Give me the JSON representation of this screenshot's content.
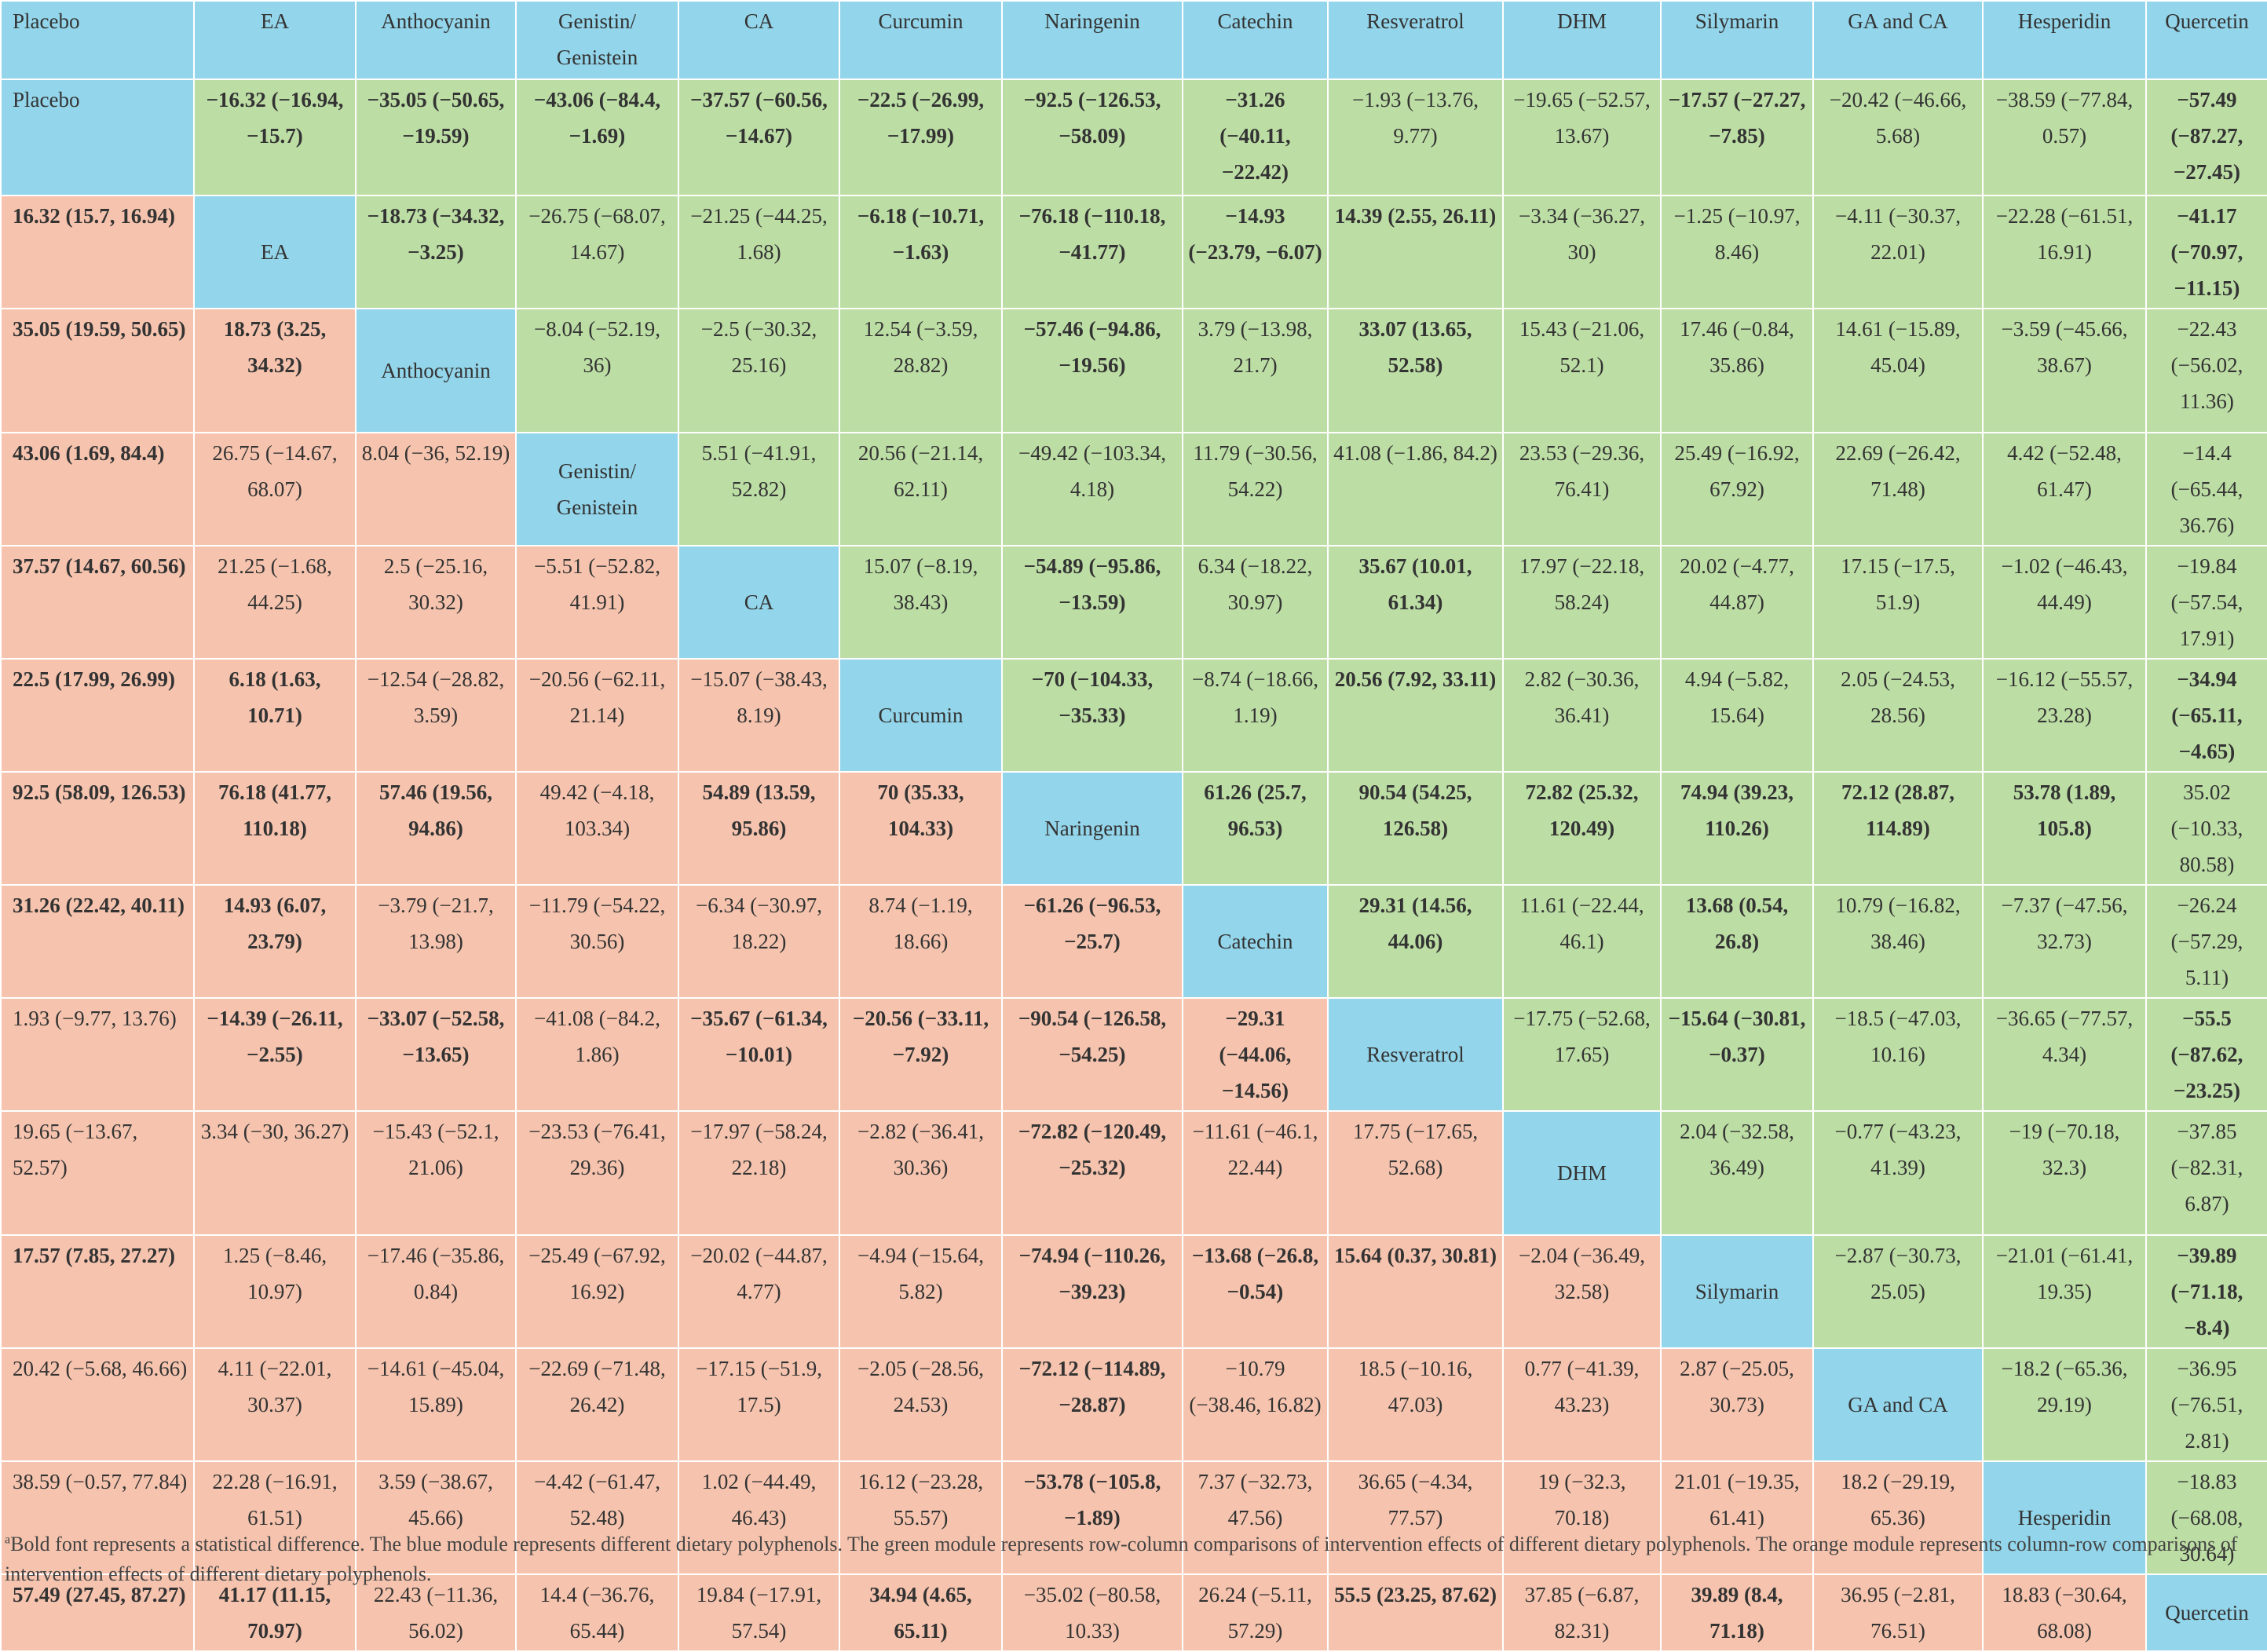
{
  "colors": {
    "blue": "#93d5ea",
    "green": "#bcdda4",
    "orange": "#f6c4ae"
  },
  "table": {
    "headers": [
      "Placebo",
      "EA",
      "Anthocyanin",
      "Genistin/ Genistein",
      "CA",
      "Curcumin",
      "Naringenin",
      "Catechin",
      "Resveratrol",
      "DHM",
      "Silymarin",
      "GA and CA",
      "Hesperidin",
      "Quercetin"
    ],
    "rows": [
      [
        "Placebo",
        "**−16.32 (−16.94, −15.7)",
        "**−35.05 (−50.65, −19.59)",
        "**−43.06 (−84.4, −1.69)",
        "**−37.57 (−60.56, −14.67)",
        "**−22.5 (−26.99, −17.99)",
        "**−92.5 (−126.53, −58.09)",
        "**−31.26 (−40.11, −22.42)",
        "−1.93 (−13.76, 9.77)",
        "−19.65 (−52.57, 13.67)",
        "**−17.57 (−27.27, −7.85)",
        "−20.42 (−46.66, 5.68)",
        "−38.59 (−77.84, 0.57)",
        "**−57.49 (−87.27, −27.45)"
      ],
      [
        "**16.32 (15.7, 16.94)",
        "EA",
        "**−18.73 (−34.32, −3.25)",
        "−26.75 (−68.07, 14.67)",
        "−21.25 (−44.25, 1.68)",
        "**−6.18 (−10.71, −1.63)",
        "**−76.18 (−110.18, −41.77)",
        "**−14.93 (−23.79, −6.07)",
        "**14.39 (2.55, 26.11)",
        "−3.34 (−36.27, 30)",
        "−1.25 (−10.97, 8.46)",
        "−4.11 (−30.37, 22.01)",
        "−22.28 (−61.51, 16.91)",
        "**−41.17 (−70.97, −11.15)"
      ],
      [
        "**35.05 (19.59, 50.65)",
        "**18.73 (3.25, 34.32)",
        "Anthocyanin",
        "−8.04 (−52.19, 36)",
        "−2.5 (−30.32, 25.16)",
        "12.54 (−3.59, 28.82)",
        "**−57.46 (−94.86, −19.56)",
        "3.79 (−13.98, 21.7)",
        "**33.07 (13.65, 52.58)",
        "15.43 (−21.06, 52.1)",
        "17.46 (−0.84, 35.86)",
        "14.61 (−15.89, 45.04)",
        "−3.59 (−45.66, 38.67)",
        "−22.43 (−56.02, 11.36)"
      ],
      [
        "**43.06 (1.69, 84.4)",
        "26.75 (−14.67, 68.07)",
        "8.04 (−36, 52.19)",
        "Genistin/ Genistein",
        "5.51 (−41.91, 52.82)",
        "20.56 (−21.14, 62.11)",
        "−49.42 (−103.34, 4.18)",
        "11.79 (−30.56, 54.22)",
        "41.08 (−1.86, 84.2)",
        "23.53 (−29.36, 76.41)",
        "25.49 (−16.92, 67.92)",
        "22.69 (−26.42, 71.48)",
        "4.42 (−52.48, 61.47)",
        "−14.4 (−65.44, 36.76)"
      ],
      [
        "**37.57 (14.67, 60.56)",
        "21.25 (−1.68, 44.25)",
        "2.5 (−25.16, 30.32)",
        "−5.51 (−52.82, 41.91)",
        "CA",
        "15.07 (−8.19, 38.43)",
        "**−54.89 (−95.86, −13.59)",
        "6.34 (−18.22, 30.97)",
        "**35.67 (10.01, 61.34)",
        "17.97 (−22.18, 58.24)",
        "20.02 (−4.77, 44.87)",
        "17.15 (−17.5, 51.9)",
        "−1.02 (−46.43, 44.49)",
        "−19.84 (−57.54, 17.91)"
      ],
      [
        "**22.5 (17.99, 26.99)",
        "**6.18 (1.63, 10.71)",
        "−12.54 (−28.82, 3.59)",
        "−20.56 (−62.11, 21.14)",
        "−15.07 (−38.43, 8.19)",
        "Curcumin",
        "**−70 (−104.33, −35.33)",
        "−8.74 (−18.66, 1.19)",
        "**20.56 (7.92, 33.11)",
        "2.82 (−30.36, 36.41)",
        "4.94 (−5.82, 15.64)",
        "2.05 (−24.53, 28.56)",
        "−16.12 (−55.57, 23.28)",
        "**−34.94 (−65.11, −4.65)"
      ],
      [
        "**92.5 (58.09, 126.53)",
        "**76.18 (41.77, 110.18)",
        "**57.46 (19.56, 94.86)",
        "49.42 (−4.18, 103.34)",
        "**54.89 (13.59, 95.86)",
        "**70 (35.33, 104.33)",
        "Naringenin",
        "**61.26 (25.7, 96.53)",
        "**90.54 (54.25, 126.58)",
        "**72.82 (25.32, 120.49)",
        "**74.94 (39.23, 110.26)",
        "**72.12 (28.87, 114.89)",
        "**53.78 (1.89, 105.8)",
        "35.02 (−10.33, 80.58)"
      ],
      [
        "**31.26 (22.42, 40.11)",
        "**14.93 (6.07, 23.79)",
        "−3.79 (−21.7, 13.98)",
        "−11.79 (−54.22, 30.56)",
        "−6.34 (−30.97, 18.22)",
        "8.74 (−1.19, 18.66)",
        "**−61.26 (−96.53, −25.7)",
        "Catechin",
        "**29.31 (14.56, 44.06)",
        "11.61 (−22.44, 46.1)",
        "**13.68 (0.54, 26.8)",
        "10.79 (−16.82, 38.46)",
        "−7.37 (−47.56, 32.73)",
        "−26.24 (−57.29, 5.11)"
      ],
      [
        "1.93 (−9.77, 13.76)",
        "**−14.39 (−26.11, −2.55)",
        "**−33.07 (−52.58, −13.65)",
        "−41.08 (−84.2, 1.86)",
        "**−35.67 (−61.34, −10.01)",
        "**−20.56 (−33.11, −7.92)",
        "**−90.54 (−126.58, −54.25)",
        "**−29.31 (−44.06, −14.56)",
        "Resveratrol",
        "−17.75 (−52.68, 17.65)",
        "**−15.64 (−30.81, −0.37)",
        "−18.5 (−47.03, 10.16)",
        "−36.65 (−77.57, 4.34)",
        "**−55.5 (−87.62, −23.25)"
      ],
      [
        "19.65 (−13.67, 52.57)",
        "3.34 (−30, 36.27)",
        "−15.43 (−52.1, 21.06)",
        "−23.53 (−76.41, 29.36)",
        "−17.97 (−58.24, 22.18)",
        "−2.82 (−36.41, 30.36)",
        "**−72.82 (−120.49, −25.32)",
        "−11.61 (−46.1, 22.44)",
        "17.75 (−17.65, 52.68)",
        "DHM",
        "2.04 (−32.58, 36.49)",
        "−0.77 (−43.23, 41.39)",
        "−19 (−70.18, 32.3)",
        "−37.85 (−82.31, 6.87)"
      ],
      [
        "**17.57 (7.85, 27.27)",
        "1.25 (−8.46, 10.97)",
        "−17.46 (−35.86, 0.84)",
        "−25.49 (−67.92, 16.92)",
        "−20.02 (−44.87, 4.77)",
        "−4.94 (−15.64, 5.82)",
        "**−74.94 (−110.26, −39.23)",
        "**−13.68 (−26.8, −0.54)",
        "**15.64 (0.37, 30.81)",
        "−2.04 (−36.49, 32.58)",
        "Silymarin",
        "−2.87 (−30.73, 25.05)",
        "−21.01 (−61.41, 19.35)",
        "**−39.89 (−71.18, −8.4)"
      ],
      [
        "20.42 (−5.68, 46.66)",
        "4.11 (−22.01, 30.37)",
        "−14.61 (−45.04, 15.89)",
        "−22.69 (−71.48, 26.42)",
        "−17.15 (−51.9, 17.5)",
        "−2.05 (−28.56, 24.53)",
        "**−72.12 (−114.89, −28.87)",
        "−10.79 (−38.46, 16.82)",
        "18.5 (−10.16, 47.03)",
        "0.77 (−41.39, 43.23)",
        "2.87 (−25.05, 30.73)",
        "GA and CA",
        "−18.2 (−65.36, 29.19)",
        "−36.95 (−76.51, 2.81)"
      ],
      [
        "38.59 (−0.57, 77.84)",
        "22.28 (−16.91, 61.51)",
        "3.59 (−38.67, 45.66)",
        "−4.42 (−61.47, 52.48)",
        "1.02 (−44.49, 46.43)",
        "16.12 (−23.28, 55.57)",
        "**−53.78 (−105.8, −1.89)",
        "7.37 (−32.73, 47.56)",
        "36.65 (−4.34, 77.57)",
        "19 (−32.3, 70.18)",
        "21.01 (−19.35, 61.41)",
        "18.2 (−29.19, 65.36)",
        "Hesperidin",
        "−18.83 (−68.08, 30.64)"
      ],
      [
        "**57.49 (27.45, 87.27)",
        "**41.17 (11.15, 70.97)",
        "22.43 (−11.36, 56.02)",
        "14.4 (−36.76, 65.44)",
        "19.84 (−17.91, 57.54)",
        "**34.94 (4.65, 65.11)",
        "−35.02 (−80.58, 10.33)",
        "26.24 (−5.11, 57.29)",
        "**55.5 (23.25, 87.62)",
        "37.85 (−6.87, 82.31)",
        "**39.89 (8.4, 71.18)",
        "36.95 (−2.81, 76.51)",
        "18.83 (−30.64, 68.08)",
        "Quercetin"
      ]
    ]
  },
  "footnote": {
    "marker": "a",
    "text": "Bold font represents a statistical difference. The blue module represents different dietary polyphenols. The green module represents row-column comparisons of intervention effects of different dietary polyphenols. The orange module represents column-row comparisons of intervention effects of different dietary polyphenols."
  }
}
